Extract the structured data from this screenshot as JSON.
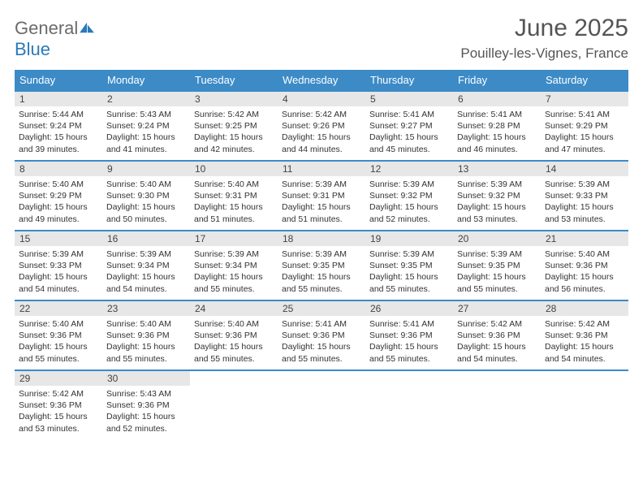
{
  "brand": {
    "text_general": "General",
    "text_blue": "Blue"
  },
  "title": "June 2025",
  "location": "Pouilley-les-Vignes, France",
  "header_bg": "#3c8bc7",
  "header_fg": "#ffffff",
  "row_border_color": "#3c8bc7",
  "daynum_bg": "#e7e7e7",
  "weekdays": [
    "Sunday",
    "Monday",
    "Tuesday",
    "Wednesday",
    "Thursday",
    "Friday",
    "Saturday"
  ],
  "weeks": [
    [
      {
        "n": "1",
        "sr": "5:44 AM",
        "ss": "9:24 PM",
        "dl": "15 hours and 39 minutes."
      },
      {
        "n": "2",
        "sr": "5:43 AM",
        "ss": "9:24 PM",
        "dl": "15 hours and 41 minutes."
      },
      {
        "n": "3",
        "sr": "5:42 AM",
        "ss": "9:25 PM",
        "dl": "15 hours and 42 minutes."
      },
      {
        "n": "4",
        "sr": "5:42 AM",
        "ss": "9:26 PM",
        "dl": "15 hours and 44 minutes."
      },
      {
        "n": "5",
        "sr": "5:41 AM",
        "ss": "9:27 PM",
        "dl": "15 hours and 45 minutes."
      },
      {
        "n": "6",
        "sr": "5:41 AM",
        "ss": "9:28 PM",
        "dl": "15 hours and 46 minutes."
      },
      {
        "n": "7",
        "sr": "5:41 AM",
        "ss": "9:29 PM",
        "dl": "15 hours and 47 minutes."
      }
    ],
    [
      {
        "n": "8",
        "sr": "5:40 AM",
        "ss": "9:29 PM",
        "dl": "15 hours and 49 minutes."
      },
      {
        "n": "9",
        "sr": "5:40 AM",
        "ss": "9:30 PM",
        "dl": "15 hours and 50 minutes."
      },
      {
        "n": "10",
        "sr": "5:40 AM",
        "ss": "9:31 PM",
        "dl": "15 hours and 51 minutes."
      },
      {
        "n": "11",
        "sr": "5:39 AM",
        "ss": "9:31 PM",
        "dl": "15 hours and 51 minutes."
      },
      {
        "n": "12",
        "sr": "5:39 AM",
        "ss": "9:32 PM",
        "dl": "15 hours and 52 minutes."
      },
      {
        "n": "13",
        "sr": "5:39 AM",
        "ss": "9:32 PM",
        "dl": "15 hours and 53 minutes."
      },
      {
        "n": "14",
        "sr": "5:39 AM",
        "ss": "9:33 PM",
        "dl": "15 hours and 53 minutes."
      }
    ],
    [
      {
        "n": "15",
        "sr": "5:39 AM",
        "ss": "9:33 PM",
        "dl": "15 hours and 54 minutes."
      },
      {
        "n": "16",
        "sr": "5:39 AM",
        "ss": "9:34 PM",
        "dl": "15 hours and 54 minutes."
      },
      {
        "n": "17",
        "sr": "5:39 AM",
        "ss": "9:34 PM",
        "dl": "15 hours and 55 minutes."
      },
      {
        "n": "18",
        "sr": "5:39 AM",
        "ss": "9:35 PM",
        "dl": "15 hours and 55 minutes."
      },
      {
        "n": "19",
        "sr": "5:39 AM",
        "ss": "9:35 PM",
        "dl": "15 hours and 55 minutes."
      },
      {
        "n": "20",
        "sr": "5:39 AM",
        "ss": "9:35 PM",
        "dl": "15 hours and 55 minutes."
      },
      {
        "n": "21",
        "sr": "5:40 AM",
        "ss": "9:36 PM",
        "dl": "15 hours and 56 minutes."
      }
    ],
    [
      {
        "n": "22",
        "sr": "5:40 AM",
        "ss": "9:36 PM",
        "dl": "15 hours and 55 minutes."
      },
      {
        "n": "23",
        "sr": "5:40 AM",
        "ss": "9:36 PM",
        "dl": "15 hours and 55 minutes."
      },
      {
        "n": "24",
        "sr": "5:40 AM",
        "ss": "9:36 PM",
        "dl": "15 hours and 55 minutes."
      },
      {
        "n": "25",
        "sr": "5:41 AM",
        "ss": "9:36 PM",
        "dl": "15 hours and 55 minutes."
      },
      {
        "n": "26",
        "sr": "5:41 AM",
        "ss": "9:36 PM",
        "dl": "15 hours and 55 minutes."
      },
      {
        "n": "27",
        "sr": "5:42 AM",
        "ss": "9:36 PM",
        "dl": "15 hours and 54 minutes."
      },
      {
        "n": "28",
        "sr": "5:42 AM",
        "ss": "9:36 PM",
        "dl": "15 hours and 54 minutes."
      }
    ],
    [
      {
        "n": "29",
        "sr": "5:42 AM",
        "ss": "9:36 PM",
        "dl": "15 hours and 53 minutes."
      },
      {
        "n": "30",
        "sr": "5:43 AM",
        "ss": "9:36 PM",
        "dl": "15 hours and 52 minutes."
      },
      null,
      null,
      null,
      null,
      null
    ]
  ],
  "labels": {
    "sunrise": "Sunrise:",
    "sunset": "Sunset:",
    "daylight": "Daylight:"
  }
}
